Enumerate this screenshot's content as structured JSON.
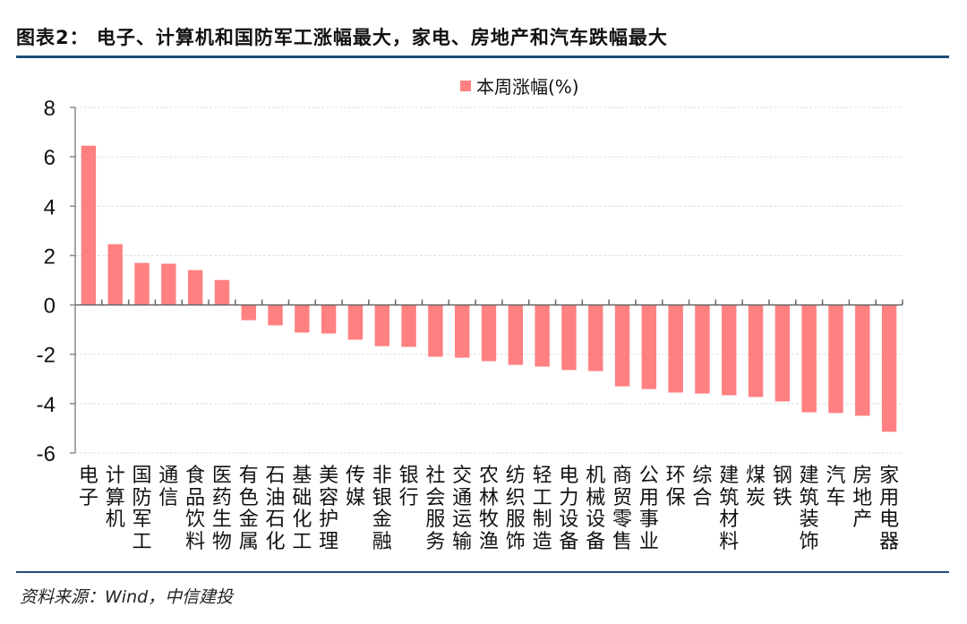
{
  "title": "图表2： 电子、计算机和国防军工涨幅最大，家电、房地产和汽车跌幅最大",
  "source": "资料来源：Wind，中信建投",
  "colors": {
    "bar": "#ff8080",
    "rule": "#1f4e79"
  },
  "chart_data": {
    "type": "bar",
    "legend": {
      "position": "top",
      "entries": [
        "本周涨幅(%)"
      ]
    },
    "categories": [
      "电子",
      "计算机",
      "国防军工",
      "通信",
      "食品饮料",
      "医药生物",
      "有色金属",
      "石油石化",
      "基础化工",
      "美容护理",
      "传媒",
      "非银金融",
      "银行",
      "社会服务",
      "交通运输",
      "农林牧渔",
      "纺织服饰",
      "轻工制造",
      "电力设备",
      "机械设备",
      "商贸零售",
      "公用事业",
      "环保",
      "综合",
      "建筑材料",
      "煤炭",
      "钢铁",
      "建筑装饰",
      "汽车",
      "房地产",
      "家用电器"
    ],
    "series": [
      {
        "name": "本周涨幅(%)",
        "values": [
          6.45,
          2.46,
          1.7,
          1.67,
          1.41,
          1.01,
          -0.62,
          -0.83,
          -1.12,
          -1.16,
          -1.41,
          -1.67,
          -1.7,
          -2.1,
          -2.14,
          -2.28,
          -2.43,
          -2.5,
          -2.64,
          -2.68,
          -3.3,
          -3.41,
          -3.55,
          -3.59,
          -3.66,
          -3.73,
          -3.91,
          -4.35,
          -4.38,
          -4.49,
          -5.14
        ]
      }
    ],
    "ylim": [
      -6,
      8
    ],
    "yticks": [
      "8",
      "6",
      "4",
      "2",
      "0",
      "-2",
      "-4",
      "-6"
    ],
    "grid": true
  }
}
